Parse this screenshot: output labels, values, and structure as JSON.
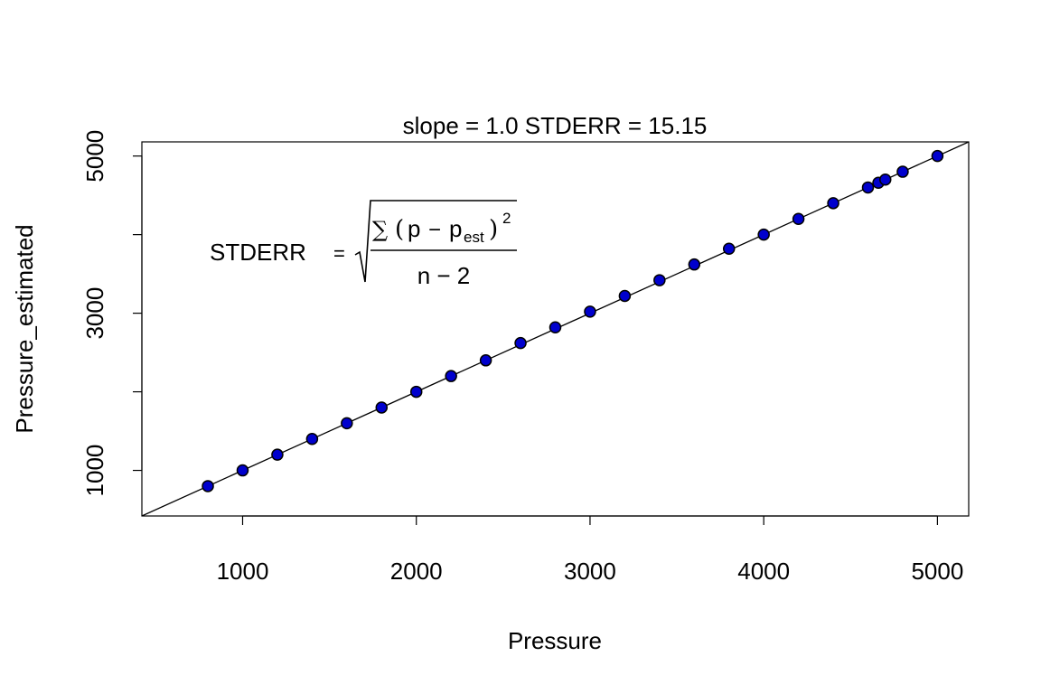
{
  "chart_data": {
    "type": "scatter",
    "title": "slope = 1.0  STDERR =  15.15",
    "xlabel": "Pressure",
    "ylabel": "Pressure_estimated",
    "xlim": [
      420,
      5180
    ],
    "ylim": [
      420,
      5180
    ],
    "x_ticks": [
      1000,
      2000,
      3000,
      4000,
      5000
    ],
    "y_ticks": [
      1000,
      2000,
      3000,
      4000,
      5000
    ],
    "x_tick_labels": [
      "1000",
      "2000",
      "3000",
      "4000",
      "5000"
    ],
    "y_tick_labels": [
      "1000",
      "3000",
      "5000"
    ],
    "grid": false,
    "point_fill": "#0000cd",
    "point_stroke": "#000000",
    "points": [
      {
        "x": 800,
        "y": 800
      },
      {
        "x": 1000,
        "y": 1000
      },
      {
        "x": 1200,
        "y": 1200
      },
      {
        "x": 1400,
        "y": 1400
      },
      {
        "x": 1600,
        "y": 1600
      },
      {
        "x": 1800,
        "y": 1800
      },
      {
        "x": 2000,
        "y": 2000
      },
      {
        "x": 2200,
        "y": 2200
      },
      {
        "x": 2400,
        "y": 2400
      },
      {
        "x": 2600,
        "y": 2620
      },
      {
        "x": 2800,
        "y": 2820
      },
      {
        "x": 3000,
        "y": 3020
      },
      {
        "x": 3200,
        "y": 3220
      },
      {
        "x": 3400,
        "y": 3420
      },
      {
        "x": 3600,
        "y": 3620
      },
      {
        "x": 3800,
        "y": 3820
      },
      {
        "x": 4000,
        "y": 4000
      },
      {
        "x": 4200,
        "y": 4200
      },
      {
        "x": 4400,
        "y": 4400
      },
      {
        "x": 4600,
        "y": 4600
      },
      {
        "x": 4660,
        "y": 4660
      },
      {
        "x": 4700,
        "y": 4700
      },
      {
        "x": 4800,
        "y": 4800
      },
      {
        "x": 5000,
        "y": 5000
      }
    ],
    "reference_line": {
      "slope": 1.0,
      "intercept": 0
    },
    "annotation": {
      "lhs": "STDERR",
      "equals": "=",
      "sum": "∑",
      "open_paren": "(",
      "p": "p",
      "minus": "−",
      "p_est_base": "p",
      "p_est_sub": "est",
      "close_paren": ")",
      "exponent": "2",
      "denominator": "n − 2"
    }
  }
}
